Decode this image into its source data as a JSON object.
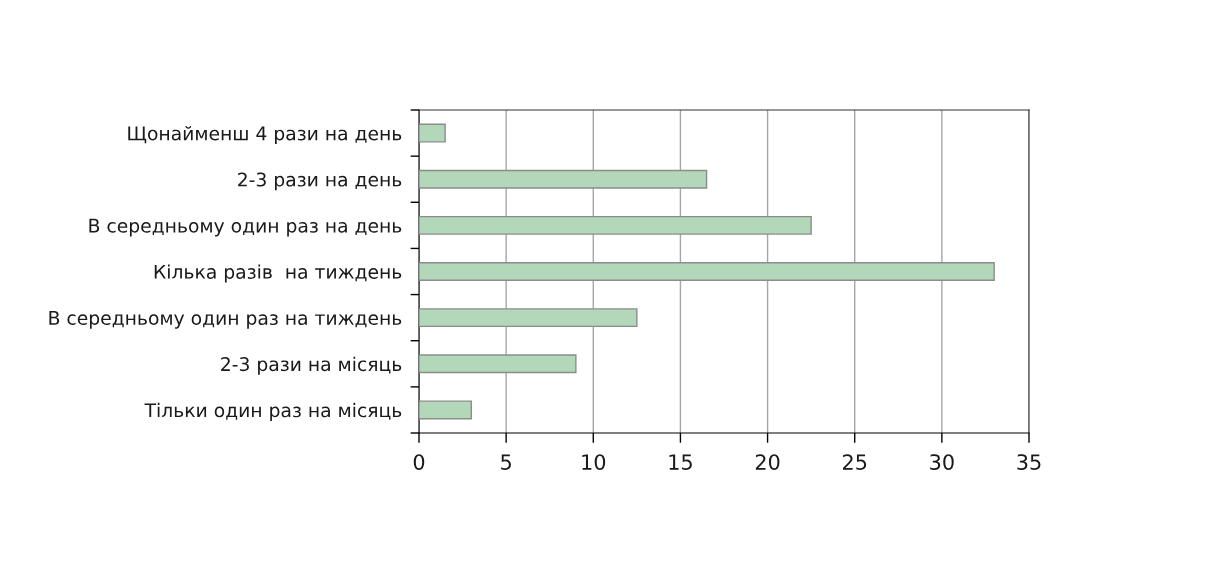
{
  "chart_data": {
    "type": "bar",
    "orientation": "horizontal",
    "categories": [
      "Щонайменш 4 рази на день",
      "2-3 рази на день",
      "В середньому один раз на день",
      "Кілька разів  на тиждень",
      "В середньому один раз на тиждень",
      "2-3 рази на місяць",
      "Тільки один раз на місяць"
    ],
    "values": [
      1.5,
      16.5,
      22.5,
      33,
      12.5,
      9,
      3
    ],
    "color": "#b3d7b9",
    "xlim": [
      0,
      35
    ],
    "xticks": [
      0,
      5,
      10,
      15,
      20,
      25,
      30,
      35
    ],
    "grid": "x"
  }
}
